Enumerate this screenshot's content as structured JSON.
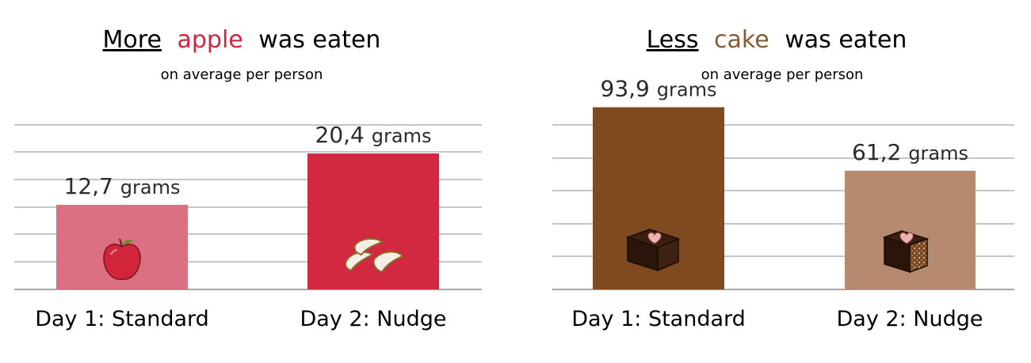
{
  "colors": {
    "text": "#2b2b2b",
    "grid": "#8c8c8c",
    "apple_word": "#d0263d",
    "cake_word": "#8a5a36"
  },
  "chart_data": [
    {
      "type": "bar",
      "title_parts": {
        "qualifier": "More",
        "food": "apple",
        "rest": "was eaten"
      },
      "subtitle": "on average per person",
      "categories": [
        "Day 1: Standard",
        "Day 2: Nudge"
      ],
      "values": [
        12.7,
        20.4
      ],
      "value_labels": [
        "12,7",
        "20,4"
      ],
      "unit": "grams",
      "bar_colors": [
        "#dc7083",
        "#d22840"
      ],
      "icons": [
        "apple-icon",
        "apple-slices-icon"
      ],
      "ylim": [
        0,
        28
      ],
      "grid": true
    },
    {
      "type": "bar",
      "title_parts": {
        "qualifier": "Less",
        "food": "cake",
        "rest": "was eaten"
      },
      "subtitle": "on average per person",
      "categories": [
        "Day 1: Standard",
        "Day 2: Nudge"
      ],
      "values": [
        93.9,
        61.2
      ],
      "value_labels": [
        "93,9",
        "61,2"
      ],
      "unit": "grams",
      "bar_colors": [
        "#804a20",
        "#b58a6e"
      ],
      "icons": [
        "chocolate-cake-icon",
        "cake-slice-icon"
      ],
      "ylim": [
        0,
        97
      ],
      "grid": true
    }
  ]
}
